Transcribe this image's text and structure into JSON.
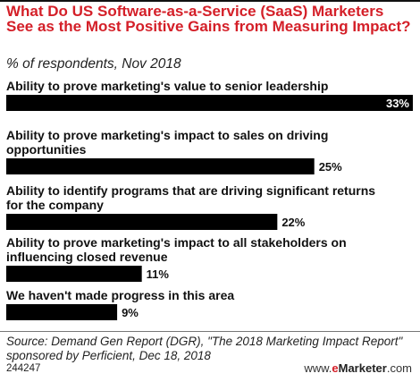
{
  "chart_data": {
    "type": "bar",
    "orientation": "horizontal",
    "title": "What Do US Software-as-a-Service (SaaS) Marketers See as the Most Positive Gains from Measuring Impact?",
    "subtitle": "% of respondents, Nov 2018",
    "categories": [
      "Ability to prove marketing's value to senior leadership",
      "Ability to prove marketing's impact to sales on driving opportunities",
      "Ability to identify programs that are driving significant returns for the company",
      "Ability to prove marketing's impact to all stakeholders on influencing closed revenue",
      "We haven't made progress in this area"
    ],
    "category_lines": [
      [
        "Ability to prove marketing's value to senior leadership"
      ],
      [
        "Ability to prove marketing's impact to sales on driving",
        "opportunities"
      ],
      [
        "Ability to identify programs that are driving significant returns",
        "for the company"
      ],
      [
        "Ability to prove marketing's impact to all stakeholders on",
        "influencing closed revenue"
      ],
      [
        "We haven't made progress in this area"
      ]
    ],
    "values": [
      33,
      25,
      22,
      11,
      9
    ],
    "value_labels": [
      "33%",
      "25%",
      "22%",
      "11%",
      "9%"
    ],
    "xlim": [
      0,
      33
    ],
    "bar_color": "#000000",
    "grid": false
  },
  "footer": {
    "source": "Source: Demand Gen Report (DGR), \"The 2018 Marketing Impact Report\" sponsored by Perficient, Dec 18, 2018",
    "chart_id": "244247",
    "brand_www": "www.",
    "brand_e": "e",
    "brand_name": "Marketer",
    "brand_tld": ".com"
  }
}
